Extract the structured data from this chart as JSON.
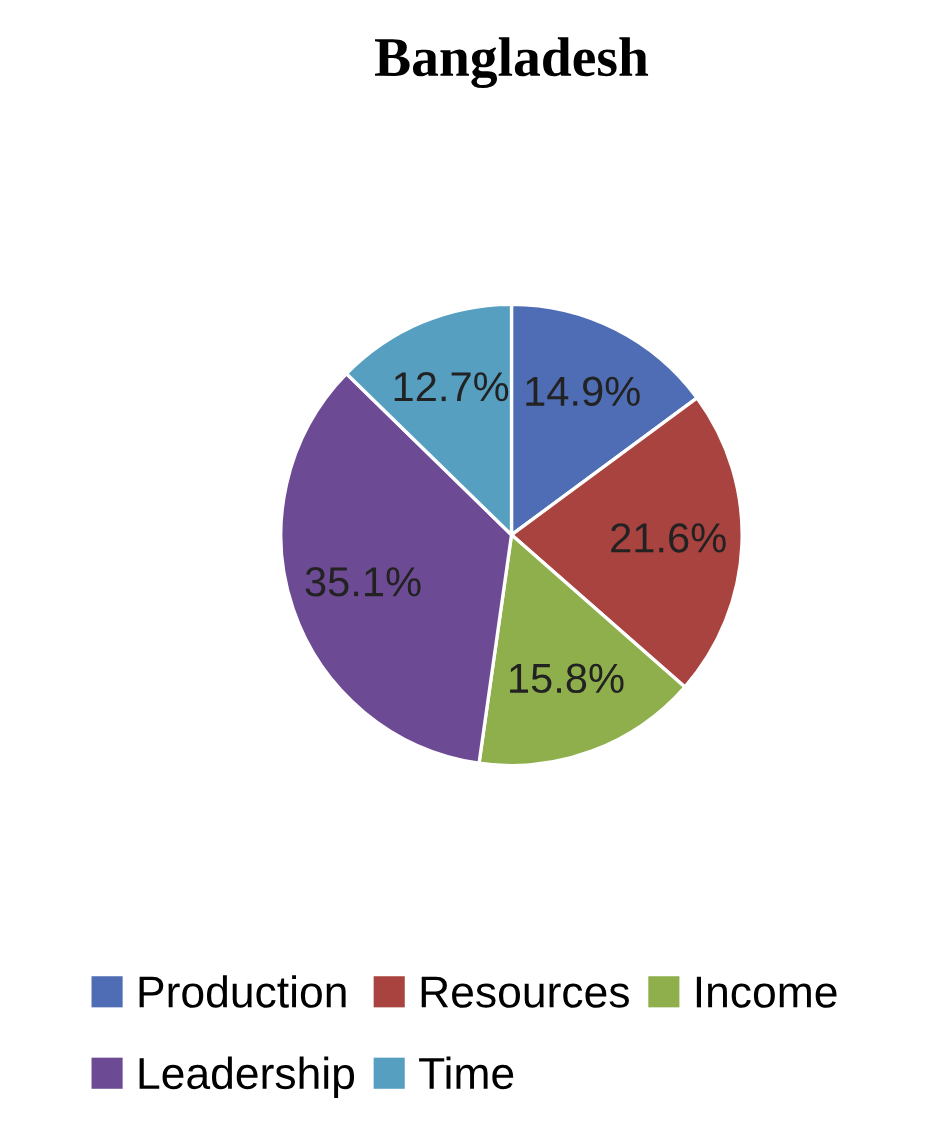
{
  "chart_data": {
    "type": "pie",
    "title": "Bangladesh",
    "categories": [
      "Production",
      "Resources",
      "Income",
      "Leadership",
      "Time"
    ],
    "values": [
      14.9,
      21.6,
      15.8,
      35.1,
      12.7
    ],
    "colors": [
      "#4f6db4",
      "#a9433f",
      "#8eaf4b",
      "#6d4b94",
      "#569fc0"
    ],
    "value_labels": [
      "14.9%",
      "21.6%",
      "15.8%",
      "35.1%",
      "12.7%"
    ],
    "legend": "bottom"
  }
}
